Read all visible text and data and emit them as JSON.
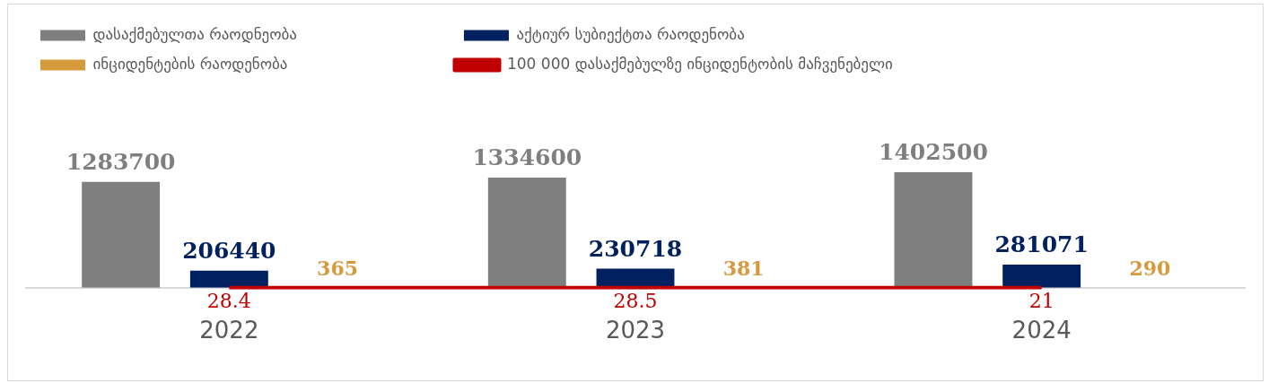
{
  "chart_data": {
    "type": "bar",
    "categories": [
      "2022",
      "2023",
      "2024"
    ],
    "series": [
      {
        "name": "დასაქმებულთა რაოდნეობა",
        "color": "#7f7f7f",
        "values": [
          1283700,
          1334600,
          1402500
        ]
      },
      {
        "name": "აქტიურ სუბიექტთა რაოდენობა",
        "color": "#002060",
        "values": [
          206440,
          230718,
          281071
        ]
      },
      {
        "name": "ინციდენტების რაოდენობა",
        "color": "#d69a3c",
        "values": [
          365,
          381,
          290
        ]
      },
      {
        "name": "100 000 დასაქმებულზე ინციდენტობის მაჩვენებელი",
        "color": "#c00000",
        "type": "line",
        "values": [
          28.4,
          28.5,
          21
        ]
      }
    ],
    "tick_labels": "x",
    "grid": false,
    "legend": "top",
    "data_labels": true
  }
}
